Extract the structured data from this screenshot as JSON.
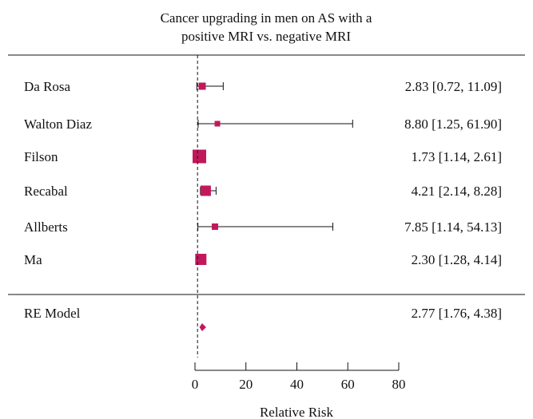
{
  "chart_data": {
    "type": "forest",
    "title_lines": [
      "Cancer upgrading in men on AS with a",
      "positive MRI vs. negative MRI"
    ],
    "xlabel": "Relative Risk",
    "xlim": [
      0,
      80
    ],
    "xticks": [
      0,
      20,
      40,
      60,
      80
    ],
    "reference_line": 1,
    "marker_color": "#c2185b",
    "studies": [
      {
        "name": "Da Rosa",
        "rr": 2.83,
        "lower": 0.72,
        "upper": 11.09,
        "label": "2.83 [0.72, 11.09]"
      },
      {
        "name": "Walton Diaz",
        "rr": 8.8,
        "lower": 1.25,
        "upper": 61.9,
        "label": "8.80 [1.25, 61.90]"
      },
      {
        "name": "Filson",
        "rr": 1.73,
        "lower": 1.14,
        "upper": 2.61,
        "label": "1.73 [1.14, 2.61]"
      },
      {
        "name": "Recabal",
        "rr": 4.21,
        "lower": 2.14,
        "upper": 8.28,
        "label": "4.21 [2.14, 8.28]"
      },
      {
        "name": "Allberts",
        "rr": 7.85,
        "lower": 1.14,
        "upper": 54.13,
        "label": "7.85 [1.14, 54.13]"
      },
      {
        "name": "Ma",
        "rr": 2.3,
        "lower": 1.28,
        "upper": 4.14,
        "label": "2.30 [1.28, 4.14]"
      }
    ],
    "summary": {
      "name": "RE Model",
      "rr": 2.77,
      "lower": 1.76,
      "upper": 4.38,
      "label": "2.77 [1.76, 4.38]"
    }
  }
}
